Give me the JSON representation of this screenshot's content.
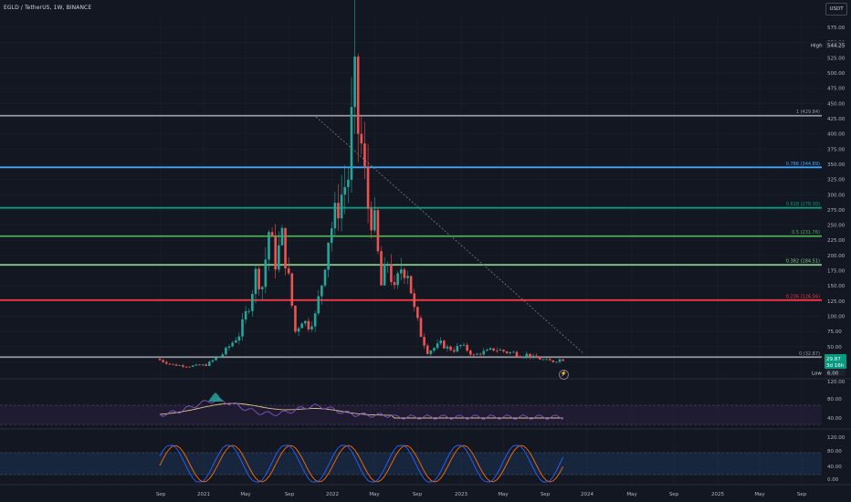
{
  "header": {
    "symbol": "EGLD / TetherUS, 1W, BINANCE",
    "currency": "USDT"
  },
  "colors": {
    "background": "#131722",
    "grid": "#1e222d",
    "up": "#26a69a",
    "down": "#ef5350",
    "axis_text": "#b2b5be",
    "fib_1": "#9598a1",
    "fib_0786": "#42a5f5",
    "fib_0618": "#089981",
    "fib_05": "#4caf50",
    "fib_0382": "#81c784",
    "fib_0236": "#f23645",
    "fib_0": "#9598a1",
    "rsi_line": "#7e57c2",
    "rsi_ma": "#e0c38b",
    "stoch_k": "#2962ff",
    "stoch_d": "#ff6d00"
  },
  "price_axis": {
    "ticks": [
      "575.00",
      "550.00",
      "525.00",
      "500.00",
      "475.00",
      "450.00",
      "425.00",
      "400.00",
      "375.00",
      "350.00",
      "325.00",
      "300.00",
      "275.00",
      "250.00",
      "225.00",
      "200.00",
      "175.00",
      "150.00",
      "125.00",
      "100.00",
      "75.00",
      "50.00",
      "25.00"
    ],
    "high_label": "High",
    "high_value": "544.25",
    "low_label": "Low",
    "low_value": "6.00",
    "last_price": "29.87",
    "countdown": "3d 16h"
  },
  "fib_levels": [
    {
      "label": "1 (429.84)",
      "value": 429.84,
      "color": "#9598a1"
    },
    {
      "label": "0.786 (344.89)",
      "value": 344.89,
      "color": "#42a5f5"
    },
    {
      "label": "0.618 (278.30)",
      "value": 278.3,
      "color": "#089981"
    },
    {
      "label": "0.5 (231.76)",
      "value": 231.76,
      "color": "#4caf50"
    },
    {
      "label": "0.382 (184.51)",
      "value": 184.51,
      "color": "#81c784"
    },
    {
      "label": "0.236 (126.56)",
      "value": 126.56,
      "color": "#f23645"
    },
    {
      "label": "0 (32.87)",
      "value": 32.87,
      "color": "#9598a1"
    }
  ],
  "time_axis": {
    "labels": [
      "Sep",
      "2021",
      "May",
      "Sep",
      "2022",
      "May",
      "Sep",
      "2023",
      "May",
      "Sep",
      "2024",
      "May",
      "Sep",
      "2025",
      "May",
      "Sep"
    ]
  },
  "rsi_axis": {
    "ticks": [
      "120.00",
      "80.00",
      "40.00"
    ]
  },
  "stoch_axis": {
    "ticks": [
      "120.00",
      "80.00",
      "40.00",
      "0.00"
    ]
  },
  "chart_data": {
    "type": "candlestick",
    "title": "EGLD / TetherUS, 1W, BINANCE",
    "ylim": [
      6,
      575
    ],
    "price_path": [
      [
        0,
        30
      ],
      [
        5,
        20
      ],
      [
        10,
        18
      ],
      [
        15,
        20
      ],
      [
        20,
        38
      ],
      [
        25,
        70
      ],
      [
        28,
        120
      ],
      [
        30,
        170
      ],
      [
        32,
        150
      ],
      [
        34,
        240
      ],
      [
        36,
        190
      ],
      [
        38,
        230
      ],
      [
        40,
        160
      ],
      [
        42,
        75
      ],
      [
        44,
        95
      ],
      [
        46,
        85
      ],
      [
        48,
        100
      ],
      [
        50,
        155
      ],
      [
        52,
        230
      ],
      [
        54,
        265
      ],
      [
        56,
        300
      ],
      [
        58,
        330
      ],
      [
        59,
        420
      ],
      [
        60,
        480
      ],
      [
        62,
        380
      ],
      [
        64,
        280
      ],
      [
        66,
        250
      ],
      [
        68,
        150
      ],
      [
        70,
        190
      ],
      [
        72,
        140
      ],
      [
        74,
        180
      ],
      [
        76,
        175
      ],
      [
        78,
        110
      ],
      [
        80,
        70
      ],
      [
        82,
        42
      ],
      [
        84,
        48
      ],
      [
        86,
        55
      ],
      [
        88,
        48
      ],
      [
        90,
        45
      ],
      [
        92,
        52
      ],
      [
        94,
        45
      ],
      [
        96,
        35
      ],
      [
        98,
        40
      ],
      [
        100,
        42
      ],
      [
        102,
        46
      ],
      [
        104,
        44
      ],
      [
        106,
        41
      ],
      [
        108,
        40
      ],
      [
        110,
        35
      ],
      [
        112,
        37
      ],
      [
        114,
        32
      ],
      [
        116,
        30
      ],
      [
        118,
        27
      ],
      [
        120,
        26
      ],
      [
        122,
        29
      ]
    ]
  }
}
